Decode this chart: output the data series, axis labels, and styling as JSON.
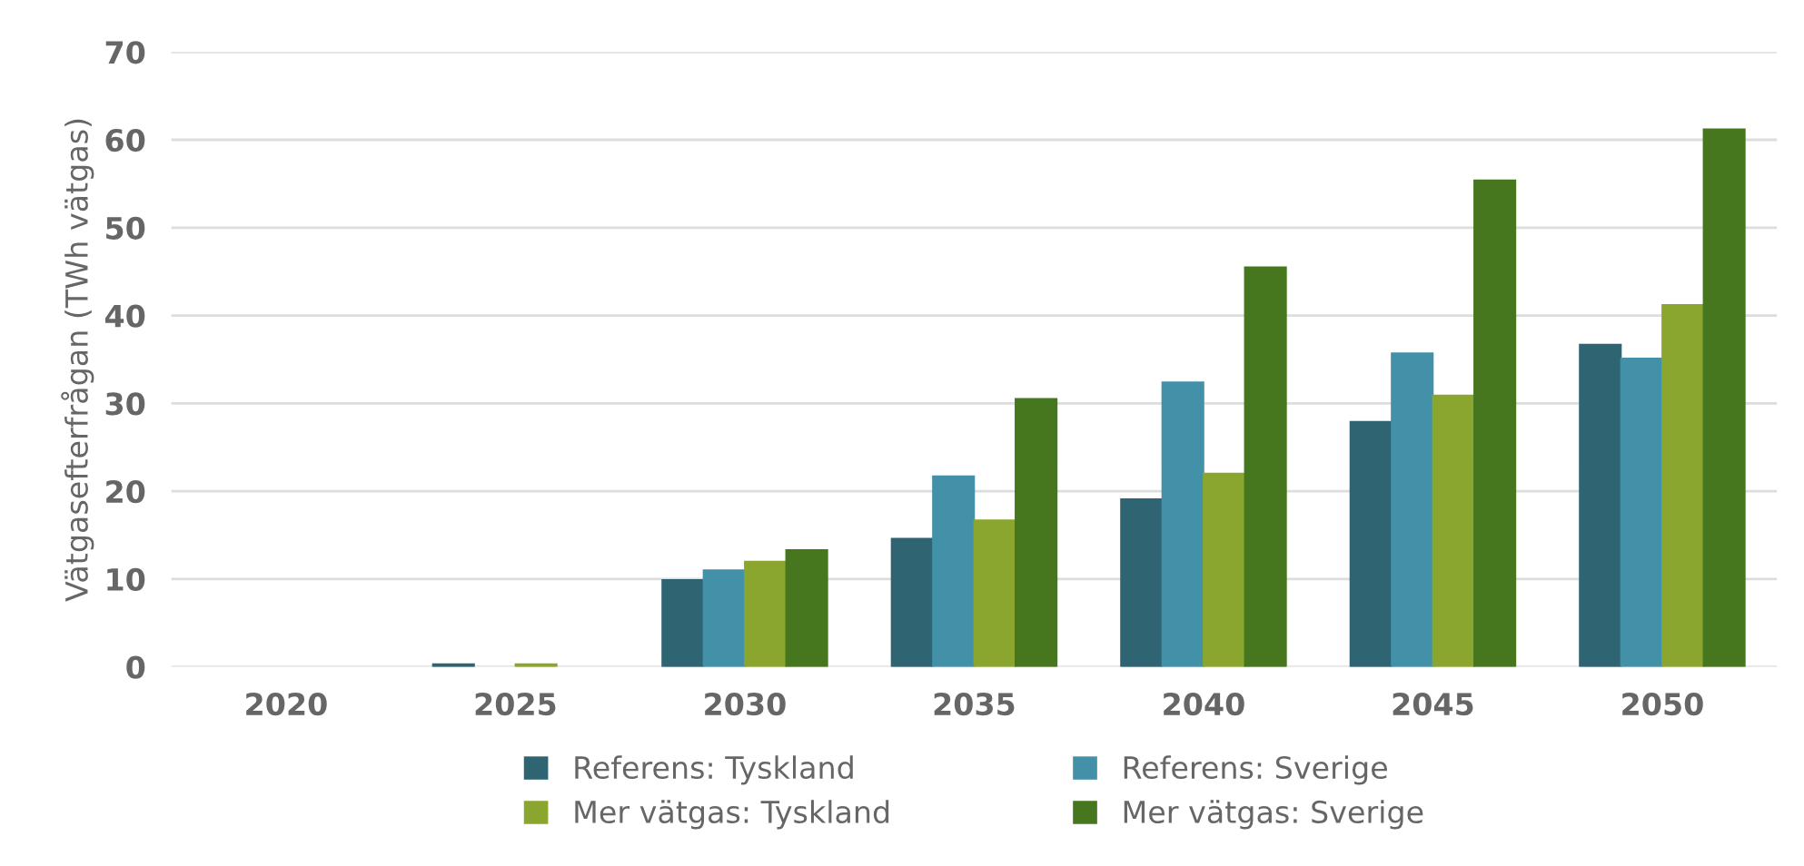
{
  "chart_data": {
    "type": "bar",
    "ylabel": "Vätgasefterfrågan (TWh vätgas)",
    "categories": [
      "2020",
      "2025",
      "2030",
      "2035",
      "2040",
      "2045",
      "2050"
    ],
    "series": [
      {
        "name": "Referens: Tyskland",
        "color": "#2f6473",
        "values": [
          null,
          0.3,
          9.9,
          14.6,
          19.1,
          27.9,
          36.7
        ]
      },
      {
        "name": "Referens: Sverige",
        "color": "#4391a9",
        "values": [
          null,
          null,
          11.0,
          21.7,
          32.4,
          35.7,
          35.1
        ]
      },
      {
        "name": "Mer vätgas: Tyskland",
        "color": "#8aa62e",
        "values": [
          null,
          0.3,
          12.0,
          16.7,
          22.0,
          30.9,
          41.2
        ]
      },
      {
        "name": "Mer vätgas: Sverige",
        "color": "#46771e",
        "values": [
          null,
          null,
          13.3,
          30.5,
          45.5,
          55.4,
          61.2
        ]
      }
    ],
    "ylim": [
      0,
      70
    ],
    "yticks": [
      0,
      10,
      20,
      30,
      40,
      50,
      60,
      70
    ],
    "grid": "y",
    "legend": "bottom"
  }
}
